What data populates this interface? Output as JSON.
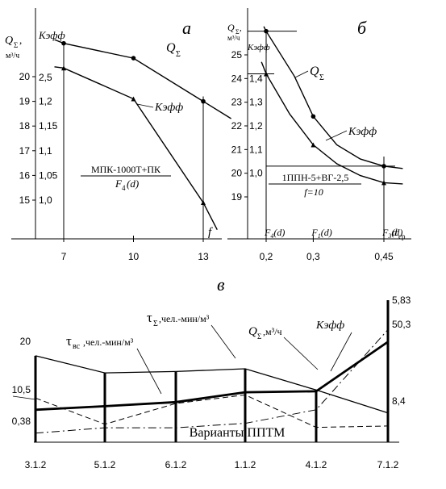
{
  "chart_data": [
    {
      "panel": "а",
      "type": "line",
      "xlabel": "f",
      "y_axis_title": "Q_Σ, м³/ч",
      "y2_axis_title": "K_эфф",
      "annotation": [
        "МПК-1000Т+ПК",
        "F4(d)"
      ],
      "x_ticks": [
        "7",
        "10",
        "13"
      ],
      "y_ticks": [
        "15",
        "16",
        "17",
        "18",
        "19",
        "20"
      ],
      "y2_ticks": [
        "1,0",
        "1,05",
        "1,1",
        "1,15",
        "1,2",
        "2,5"
      ],
      "series": [
        {
          "name": "Q_Σ",
          "points": [
            [
              6.6,
              21.5
            ],
            [
              7,
              21.35
            ],
            [
              10,
              20.75
            ],
            [
              13,
              19.0
            ],
            [
              14.2,
              18.3
            ]
          ]
        },
        {
          "name": "K_эфф",
          "points": [
            [
              6.6,
              20.4
            ],
            [
              7,
              20.35
            ],
            [
              10,
              19.1
            ],
            [
              13,
              14.9
            ],
            [
              13.6,
              13.8
            ]
          ]
        }
      ]
    },
    {
      "panel": "б",
      "type": "line",
      "xlabel": "d_ср",
      "y_axis_title": "Q_Σ, м³/ч",
      "y2_axis_title": "K_эфф",
      "annotation": [
        "1ППН-5+ВГ-2,5",
        "f=10"
      ],
      "x_ticks": [
        "0,2",
        "0,3",
        "0,45"
      ],
      "x_labels_top": [
        "F4(d)",
        "F1(d)",
        "F3(d)"
      ],
      "y_ticks": [
        "19",
        "20",
        "21",
        "22",
        "23",
        "24",
        "25"
      ],
      "y2_ticks": [
        "1,0",
        "1,1",
        "1,2",
        "1,3",
        "1,4"
      ],
      "series": [
        {
          "name": "Q_Σ",
          "points": [
            [
              0.195,
              26.2
            ],
            [
              0.2,
              26.0
            ],
            [
              0.26,
              24.1
            ],
            [
              0.3,
              22.4
            ],
            [
              0.35,
              21.2
            ],
            [
              0.4,
              20.6
            ],
            [
              0.45,
              20.3
            ],
            [
              0.49,
              20.2
            ]
          ]
        },
        {
          "name": "K_эфф",
          "points": [
            [
              0.19,
              24.7
            ],
            [
              0.2,
              24.2
            ],
            [
              0.25,
              22.5
            ],
            [
              0.3,
              21.2
            ],
            [
              0.35,
              20.4
            ],
            [
              0.4,
              19.9
            ],
            [
              0.45,
              19.6
            ],
            [
              0.49,
              19.55
            ]
          ]
        }
      ]
    },
    {
      "panel": "в",
      "type": "line",
      "annotation": "Варианты ППТМ",
      "categories": [
        "3.1.2",
        "5.1.2",
        "6.1.2",
        "1.1.2",
        "4.1.2",
        "7.1.2"
      ],
      "y_tick_labels": [
        "20",
        "10,5",
        "0,38"
      ],
      "right_labels": [
        "5,83",
        "50,3",
        "8,4"
      ],
      "series": [
        {
          "name": "τ_Σ, чел.-мин/м³",
          "style": "thin-solid",
          "values": [
            19.2,
            15.4,
            15.7,
            16.3,
            11.6,
            6.5
          ]
        },
        {
          "name": "K_эфф",
          "style": "thick-solid",
          "values": [
            7.2,
            8.0,
            8.9,
            11.1,
            11.3,
            22.3
          ]
        },
        {
          "name": "τ_вс, чел.-мин/м³",
          "style": "dashed",
          "values": [
            9.8,
            4.0,
            8.6,
            10.5,
            3.3,
            3.6
          ]
        },
        {
          "name": "Q_Σ, м³/ч",
          "style": "dash-dot",
          "values": [
            2.0,
            3.2,
            3.2,
            4.2,
            7.2,
            25.0
          ]
        }
      ]
    }
  ]
}
